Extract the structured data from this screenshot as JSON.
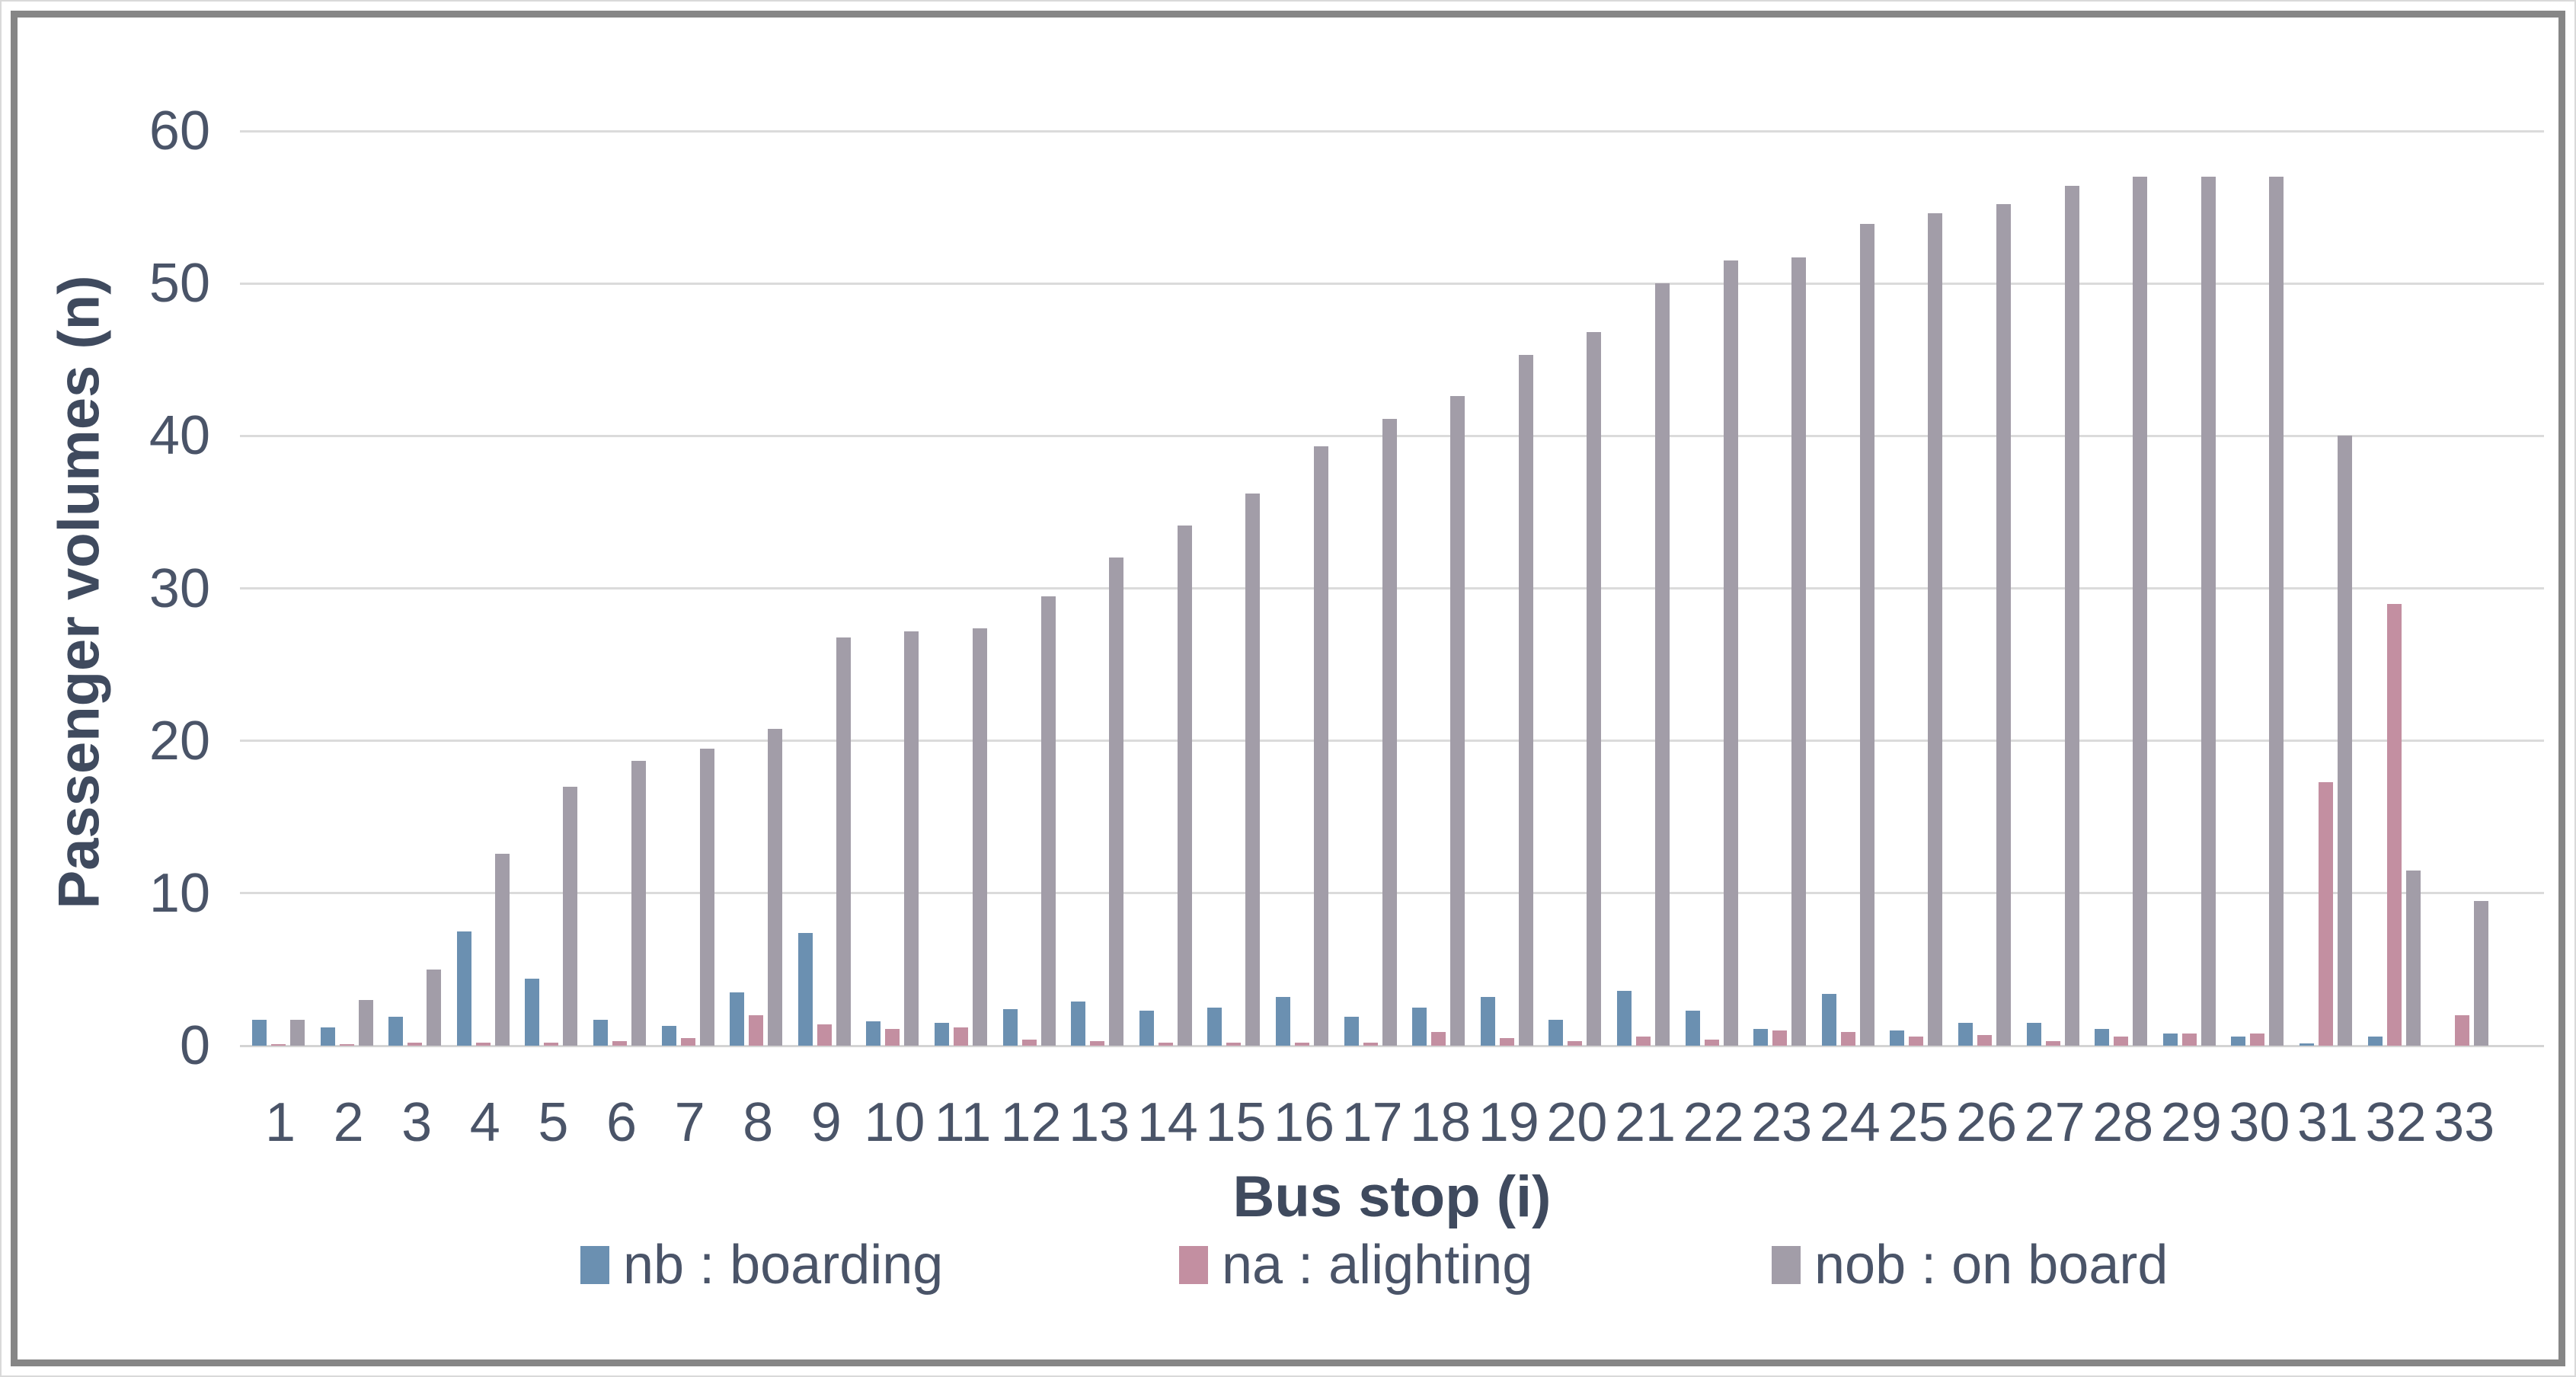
{
  "chart_data": {
    "type": "bar",
    "title": "",
    "categories": [
      1,
      2,
      3,
      4,
      5,
      6,
      7,
      8,
      9,
      10,
      11,
      12,
      13,
      14,
      15,
      16,
      17,
      18,
      19,
      20,
      21,
      22,
      23,
      24,
      25,
      26,
      27,
      28,
      29,
      30,
      31,
      32,
      33
    ],
    "series": [
      {
        "name": "nb : boarding",
        "color": "#6b90b1",
        "values": [
          1.7,
          1.2,
          1.9,
          7.5,
          4.4,
          1.7,
          1.3,
          3.5,
          7.4,
          1.6,
          1.5,
          2.4,
          2.9,
          2.3,
          2.5,
          3.2,
          1.9,
          2.5,
          3.2,
          1.7,
          3.6,
          2.3,
          1.1,
          3.4,
          1.0,
          1.5,
          1.5,
          1.1,
          0.8,
          0.6,
          0.15,
          0.6,
          0
        ]
      },
      {
        "name": "na : alighting",
        "color": "#c38fa1",
        "values": [
          0.1,
          0.1,
          0.2,
          0.2,
          0.2,
          0.3,
          0.5,
          2.0,
          1.4,
          1.1,
          1.2,
          0.4,
          0.3,
          0.2,
          0.2,
          0.2,
          0.2,
          0.9,
          0.5,
          0.3,
          0.6,
          0.4,
          1.0,
          0.9,
          0.6,
          0.7,
          0.3,
          0.6,
          0.8,
          0.8,
          17.3,
          29.0,
          2.0
        ]
      },
      {
        "name": "nob : on board",
        "color": "#a29da8",
        "values": [
          1.7,
          3.0,
          5.0,
          12.6,
          17.0,
          18.7,
          19.5,
          20.8,
          26.8,
          27.2,
          27.4,
          29.5,
          32.0,
          34.1,
          36.2,
          39.3,
          41.1,
          42.6,
          45.3,
          46.8,
          50.0,
          51.5,
          51.7,
          53.9,
          54.6,
          55.2,
          56.4,
          57.0,
          57.0,
          57.0,
          40.0,
          11.5,
          9.5
        ]
      }
    ],
    "xlabel": "Bus stop (i)",
    "ylabel": "Passenger volumes (n)",
    "ylim": [
      0,
      60
    ],
    "ytick_step": 10,
    "yticks": [
      0,
      10,
      20,
      30,
      40,
      50,
      60
    ],
    "grid": true,
    "legend_position": "bottom"
  },
  "legend_items": [
    {
      "label": "nb : boarding"
    },
    {
      "label": "na : alighting"
    },
    {
      "label": "nob : on board"
    }
  ],
  "colors": {
    "grid": "#dbdbdb",
    "text": "#4a5468",
    "frame_border": "#868686"
  }
}
